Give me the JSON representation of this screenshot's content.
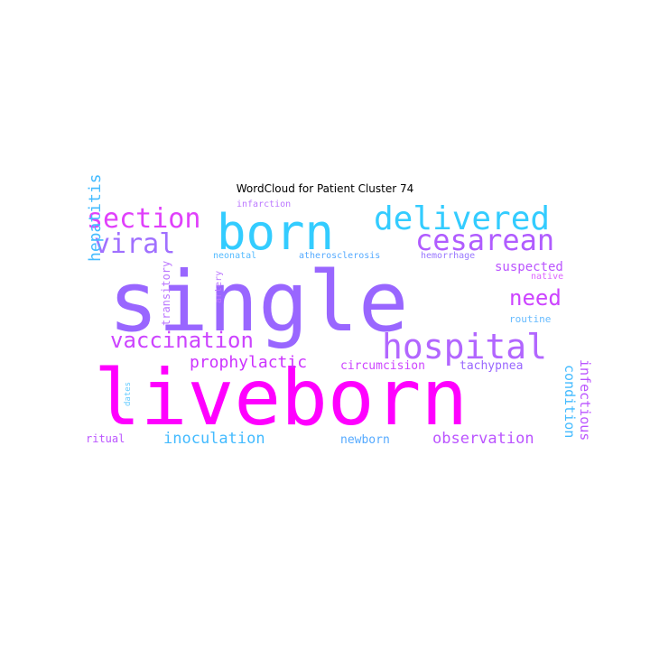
{
  "figure": {
    "title": "WordCloud for Patient Cluster 74"
  },
  "palette": {
    "magenta": "#ff00ff",
    "violet": "#9966ff",
    "sky": "#33ccff",
    "orchid": "#cc66ff",
    "purple": "#b266ff",
    "lightblue": "#66ccff",
    "pinkviolet": "#d966ff"
  },
  "words": [
    {
      "text": "single",
      "color": "#9966ff"
    },
    {
      "text": "liveborn",
      "color": "#ff00ff"
    },
    {
      "text": "born",
      "color": "#33ccff"
    },
    {
      "text": "delivered",
      "color": "#33ccff"
    },
    {
      "text": "section",
      "color": "#e040fb"
    },
    {
      "text": "cesarean",
      "color": "#b05cff"
    },
    {
      "text": "viral",
      "color": "#a070ff"
    },
    {
      "text": "hospital",
      "color": "#b266ff"
    },
    {
      "text": "vaccination",
      "color": "#cc44ff"
    },
    {
      "text": "need",
      "color": "#cc44ff"
    },
    {
      "text": "hepatitis",
      "color": "#44bbff"
    },
    {
      "text": "prophylactic",
      "color": "#cc33ff"
    },
    {
      "text": "inoculation",
      "color": "#44bbff"
    },
    {
      "text": "observation",
      "color": "#bb55ff"
    },
    {
      "text": "suspected",
      "color": "#bb55ff"
    },
    {
      "text": "infectious",
      "color": "#bb55ff"
    },
    {
      "text": "condition",
      "color": "#44bbff"
    },
    {
      "text": "circumcision",
      "color": "#cc44ff"
    },
    {
      "text": "tachypnea",
      "color": "#9966ff"
    },
    {
      "text": "newborn",
      "color": "#55aaff"
    },
    {
      "text": "ritual",
      "color": "#bb55ff"
    },
    {
      "text": "transitory",
      "color": "#bb77ff"
    },
    {
      "text": "artery",
      "color": "#bb77ff"
    },
    {
      "text": "neonatal",
      "color": "#55bbff"
    },
    {
      "text": "atherosclerosis",
      "color": "#55aaff"
    },
    {
      "text": "hemorrhage",
      "color": "#9977ff"
    },
    {
      "text": "infarction",
      "color": "#bb77ff"
    },
    {
      "text": "native",
      "color": "#dd66ff"
    },
    {
      "text": "routine",
      "color": "#66bbff"
    },
    {
      "text": "dates",
      "color": "#66ccff"
    }
  ]
}
